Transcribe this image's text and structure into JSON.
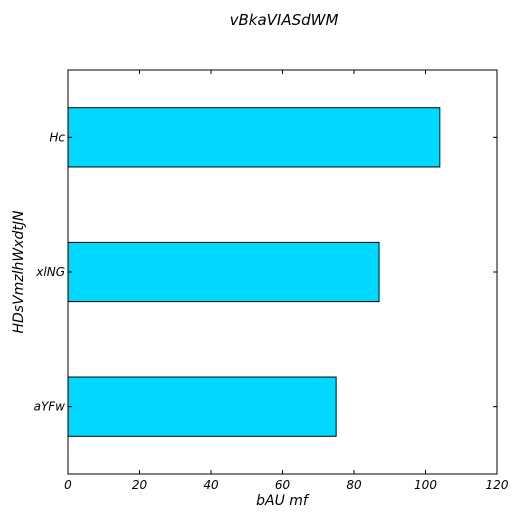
{
  "chart_data": {
    "type": "bar",
    "orientation": "horizontal",
    "title": "vBkaVIASdWM",
    "xlabel": "bAU mf",
    "ylabel": "HDsVmzlhWxdtJN",
    "categories": [
      "aYFw",
      "xlNG",
      "Hc"
    ],
    "values": [
      75,
      87,
      104
    ],
    "xlim": [
      0,
      120
    ],
    "xticks": [
      "0",
      "20",
      "40",
      "60",
      "80",
      "100",
      "120"
    ],
    "bar_color": "#00d8ff",
    "grid": false
  }
}
